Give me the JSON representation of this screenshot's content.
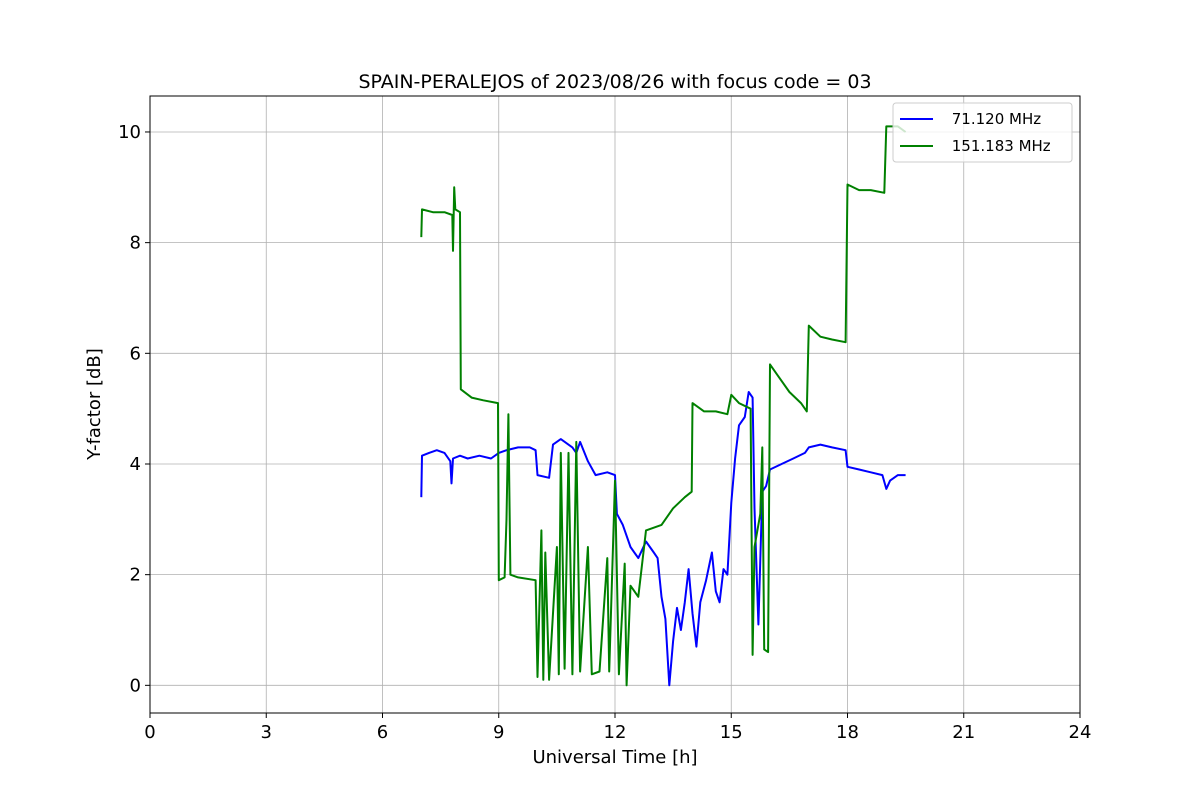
{
  "chart_data": {
    "type": "line",
    "title": "SPAIN-PERALEJOS of 2023/08/26 with focus code = 03",
    "xlabel": "Universal Time [h]",
    "ylabel": "Y-factor [dB]",
    "xlim": [
      0,
      24
    ],
    "ylim": [
      -0.5,
      10.65
    ],
    "xticks": [
      0,
      3,
      6,
      9,
      12,
      15,
      18,
      21,
      24
    ],
    "yticks": [
      0,
      2,
      4,
      6,
      8,
      10
    ],
    "x_tick_labels": [
      "0",
      "3",
      "6",
      "9",
      "12",
      "15",
      "18",
      "21",
      "24"
    ],
    "y_tick_labels": [
      "0",
      "2",
      "4",
      "6",
      "8",
      "10"
    ],
    "grid": true,
    "legend_position": "top-right",
    "series": [
      {
        "name": " 71.120 MHz",
        "color": "#0000ff",
        "points": [
          [
            7.0,
            3.4
          ],
          [
            7.02,
            4.15
          ],
          [
            7.2,
            4.2
          ],
          [
            7.4,
            4.25
          ],
          [
            7.6,
            4.2
          ],
          [
            7.75,
            4.05
          ],
          [
            7.78,
            3.65
          ],
          [
            7.82,
            4.1
          ],
          [
            8.0,
            4.15
          ],
          [
            8.2,
            4.1
          ],
          [
            8.5,
            4.15
          ],
          [
            8.8,
            4.1
          ],
          [
            9.0,
            4.2
          ],
          [
            9.2,
            4.25
          ],
          [
            9.5,
            4.3
          ],
          [
            9.8,
            4.3
          ],
          [
            9.95,
            4.25
          ],
          [
            10.0,
            3.8
          ],
          [
            10.3,
            3.75
          ],
          [
            10.4,
            4.35
          ],
          [
            10.6,
            4.45
          ],
          [
            10.9,
            4.3
          ],
          [
            11.0,
            4.2
          ],
          [
            11.1,
            4.4
          ],
          [
            11.3,
            4.05
          ],
          [
            11.5,
            3.8
          ],
          [
            11.8,
            3.85
          ],
          [
            12.0,
            3.8
          ],
          [
            12.05,
            3.1
          ],
          [
            12.2,
            2.9
          ],
          [
            12.4,
            2.5
          ],
          [
            12.6,
            2.3
          ],
          [
            12.8,
            2.6
          ],
          [
            13.0,
            2.4
          ],
          [
            13.1,
            2.3
          ],
          [
            13.2,
            1.6
          ],
          [
            13.3,
            1.2
          ],
          [
            13.4,
            0.0
          ],
          [
            13.5,
            0.8
          ],
          [
            13.6,
            1.4
          ],
          [
            13.7,
            1.0
          ],
          [
            13.8,
            1.5
          ],
          [
            13.9,
            2.1
          ],
          [
            14.0,
            1.3
          ],
          [
            14.1,
            0.7
          ],
          [
            14.2,
            1.5
          ],
          [
            14.35,
            1.9
          ],
          [
            14.5,
            2.4
          ],
          [
            14.6,
            1.7
          ],
          [
            14.7,
            1.5
          ],
          [
            14.8,
            2.1
          ],
          [
            14.9,
            2.0
          ],
          [
            15.0,
            3.3
          ],
          [
            15.1,
            4.1
          ],
          [
            15.2,
            4.7
          ],
          [
            15.35,
            4.85
          ],
          [
            15.45,
            5.3
          ],
          [
            15.55,
            5.2
          ],
          [
            15.6,
            3.2
          ],
          [
            15.7,
            1.1
          ],
          [
            15.8,
            3.5
          ],
          [
            15.9,
            3.6
          ],
          [
            16.0,
            3.9
          ],
          [
            16.3,
            4.0
          ],
          [
            16.6,
            4.1
          ],
          [
            16.9,
            4.2
          ],
          [
            17.0,
            4.3
          ],
          [
            17.3,
            4.35
          ],
          [
            17.6,
            4.3
          ],
          [
            17.95,
            4.25
          ],
          [
            18.0,
            3.95
          ],
          [
            18.3,
            3.9
          ],
          [
            18.6,
            3.85
          ],
          [
            18.9,
            3.8
          ],
          [
            19.0,
            3.55
          ],
          [
            19.1,
            3.7
          ],
          [
            19.3,
            3.8
          ],
          [
            19.5,
            3.8
          ]
        ]
      },
      {
        "name": " 151.183 MHz",
        "color": "#008000",
        "points": [
          [
            7.0,
            8.1
          ],
          [
            7.02,
            8.6
          ],
          [
            7.3,
            8.55
          ],
          [
            7.6,
            8.55
          ],
          [
            7.8,
            8.5
          ],
          [
            7.82,
            7.85
          ],
          [
            7.85,
            9.0
          ],
          [
            7.88,
            8.6
          ],
          [
            8.0,
            8.55
          ],
          [
            8.02,
            5.35
          ],
          [
            8.3,
            5.2
          ],
          [
            8.6,
            5.15
          ],
          [
            8.98,
            5.1
          ],
          [
            9.0,
            1.9
          ],
          [
            9.15,
            1.95
          ],
          [
            9.2,
            3.0
          ],
          [
            9.25,
            4.9
          ],
          [
            9.3,
            2.0
          ],
          [
            9.5,
            1.95
          ],
          [
            9.95,
            1.9
          ],
          [
            10.0,
            0.15
          ],
          [
            10.1,
            2.8
          ],
          [
            10.15,
            0.1
          ],
          [
            10.2,
            2.4
          ],
          [
            10.3,
            0.1
          ],
          [
            10.5,
            2.5
          ],
          [
            10.55,
            0.2
          ],
          [
            10.6,
            4.2
          ],
          [
            10.7,
            0.3
          ],
          [
            10.8,
            4.2
          ],
          [
            10.9,
            0.2
          ],
          [
            11.0,
            4.4
          ],
          [
            11.1,
            0.25
          ],
          [
            11.3,
            2.5
          ],
          [
            11.4,
            0.2
          ],
          [
            11.6,
            0.25
          ],
          [
            11.8,
            2.3
          ],
          [
            11.85,
            0.25
          ],
          [
            12.0,
            3.7
          ],
          [
            12.1,
            0.2
          ],
          [
            12.25,
            2.2
          ],
          [
            12.3,
            0.0
          ],
          [
            12.4,
            1.8
          ],
          [
            12.6,
            1.6
          ],
          [
            12.8,
            2.8
          ],
          [
            13.2,
            2.9
          ],
          [
            13.5,
            3.2
          ],
          [
            13.8,
            3.4
          ],
          [
            13.98,
            3.5
          ],
          [
            14.0,
            5.1
          ],
          [
            14.3,
            4.95
          ],
          [
            14.6,
            4.95
          ],
          [
            14.9,
            4.9
          ],
          [
            15.0,
            5.25
          ],
          [
            15.2,
            5.1
          ],
          [
            15.5,
            5.0
          ],
          [
            15.55,
            0.55
          ],
          [
            15.6,
            2.5
          ],
          [
            15.75,
            3.1
          ],
          [
            15.8,
            4.3
          ],
          [
            15.85,
            0.65
          ],
          [
            15.95,
            0.6
          ],
          [
            16.0,
            5.8
          ],
          [
            16.2,
            5.6
          ],
          [
            16.5,
            5.3
          ],
          [
            16.8,
            5.1
          ],
          [
            16.95,
            4.95
          ],
          [
            17.0,
            6.5
          ],
          [
            17.3,
            6.3
          ],
          [
            17.6,
            6.25
          ],
          [
            17.95,
            6.2
          ],
          [
            18.0,
            9.05
          ],
          [
            18.3,
            8.95
          ],
          [
            18.6,
            8.95
          ],
          [
            18.95,
            8.9
          ],
          [
            19.0,
            10.1
          ],
          [
            19.3,
            10.1
          ],
          [
            19.5,
            10.0
          ]
        ]
      }
    ]
  }
}
